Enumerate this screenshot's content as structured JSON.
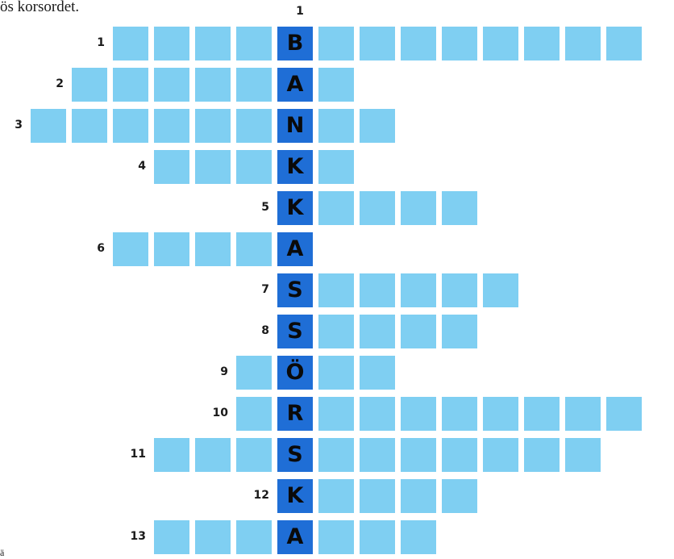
{
  "intro": "ös korsordet.",
  "column_number": "1",
  "bottom_fragment": "ä",
  "colors": {
    "cell": "#7fcff2",
    "key_cell": "#1f6ed6"
  },
  "rows": [
    {
      "clue": "1",
      "start": -4,
      "length": 13,
      "letter": "B"
    },
    {
      "clue": "2",
      "start": -5,
      "length": 7,
      "letter": "A"
    },
    {
      "clue": "3",
      "start": -6,
      "length": 9,
      "letter": "N"
    },
    {
      "clue": "4",
      "start": -3,
      "length": 5,
      "letter": "K"
    },
    {
      "clue": "5",
      "start": 0,
      "length": 5,
      "letter": "K"
    },
    {
      "clue": "6",
      "start": -4,
      "length": 5,
      "letter": "A"
    },
    {
      "clue": "7",
      "start": 0,
      "length": 6,
      "letter": "S"
    },
    {
      "clue": "8",
      "start": 0,
      "length": 5,
      "letter": "S"
    },
    {
      "clue": "9",
      "start": -1,
      "length": 4,
      "letter": "Ö"
    },
    {
      "clue": "10",
      "start": -1,
      "length": 10,
      "letter": "R"
    },
    {
      "clue": "11",
      "start": -3,
      "length": 11,
      "letter": "S"
    },
    {
      "clue": "12",
      "start": 0,
      "length": 5,
      "letter": "K"
    },
    {
      "clue": "13",
      "start": -3,
      "length": 7,
      "letter": "A"
    }
  ]
}
